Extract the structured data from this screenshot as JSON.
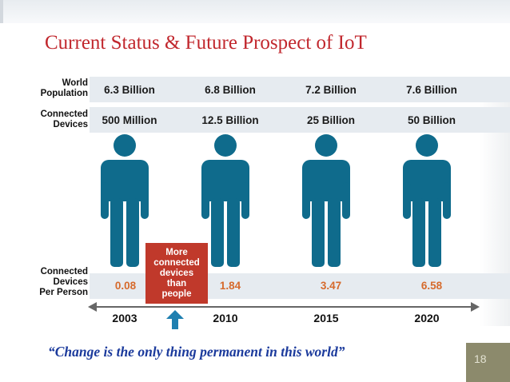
{
  "slide": {
    "title": "Current Status & Future Prospect of IoT",
    "quote": "“Change is the only thing permanent in this world”",
    "slide_number": "18"
  },
  "infographic": {
    "row_labels": {
      "world_population": [
        "World",
        "Population"
      ],
      "connected_devices": [
        "Connected",
        "Devices"
      ],
      "per_person": [
        "Connected",
        "Devices",
        "Per Person"
      ]
    },
    "columns": [
      {
        "year": "2003",
        "population": "6.3 Billion",
        "devices": "500 Million",
        "ratio": "0.08"
      },
      {
        "year": "2010",
        "population": "6.8 Billion",
        "devices": "12.5 Billion",
        "ratio": "1.84"
      },
      {
        "year": "2015",
        "population": "7.2 Billion",
        "devices": "25 Billion",
        "ratio": "3.47"
      },
      {
        "year": "2020",
        "population": "7.6 Billion",
        "devices": "50 Billion",
        "ratio": "6.58"
      }
    ],
    "callout": [
      "More",
      "connected",
      "devices",
      "than",
      "people"
    ],
    "colors": {
      "person": "#0f6b8c",
      "ratio_text": "#d66a2c",
      "callout_bg": "#c0392b",
      "arrow": "#1e7fb0",
      "title": "#c1272d",
      "quote": "#1b3a9c"
    }
  }
}
